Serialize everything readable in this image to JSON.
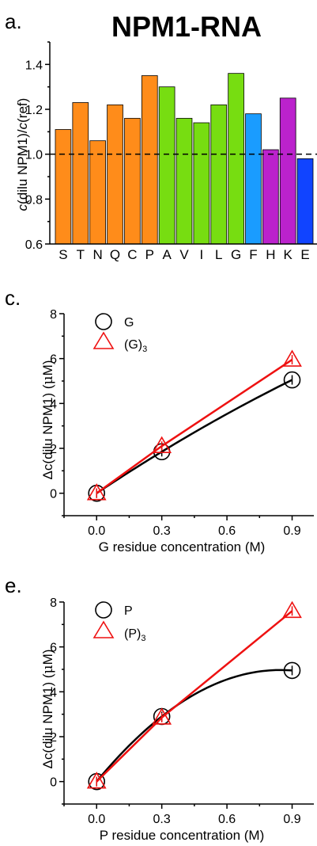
{
  "chart_data": [
    {
      "panel": "a.",
      "title": "NPM1-RNA",
      "type": "bar",
      "ylabel_parts": [
        "c",
        "(dilu NPM1)/",
        "c",
        "(ref)"
      ],
      "ylim": [
        0.6,
        1.5
      ],
      "yticks": [
        0.6,
        0.8,
        1.0,
        1.2,
        1.4
      ],
      "ytick_labels": [
        "0.6",
        "0.8",
        "1.0",
        "1.2",
        "1.4"
      ],
      "reference_line": 1.0,
      "categories": [
        "S",
        "T",
        "N",
        "Q",
        "C",
        "P",
        "A",
        "V",
        "I",
        "L",
        "G",
        "F",
        "H",
        "K",
        "E"
      ],
      "values": [
        1.11,
        1.23,
        1.06,
        1.22,
        1.16,
        1.35,
        1.3,
        1.16,
        1.14,
        1.22,
        1.36,
        1.18,
        1.02,
        1.25,
        0.98
      ],
      "colors": [
        "#ff8c1a",
        "#ff8c1a",
        "#ff8c1a",
        "#ff8c1a",
        "#ff8c1a",
        "#ff8c1a",
        "#77dd11",
        "#77dd11",
        "#77dd11",
        "#77dd11",
        "#77dd11",
        "#1a9cff",
        "#bb22cc",
        "#bb22cc",
        "#1144ff"
      ]
    },
    {
      "panel": "c.",
      "type": "line",
      "xlabel": "G residue concentration (M)",
      "ylabel_parts": [
        "Δc(dilu NPM1) (",
        "μ",
        "M)"
      ],
      "xlim": [
        -0.15,
        1.0
      ],
      "ylim": [
        -1,
        8
      ],
      "xticks": [
        0.0,
        0.3,
        0.6,
        0.9
      ],
      "xtick_labels": [
        "0.0",
        "0.3",
        "0.6",
        "0.9"
      ],
      "yticks": [
        0,
        2,
        4,
        6,
        8
      ],
      "ytick_labels": [
        "0",
        "2",
        "4",
        "6",
        "8"
      ],
      "series": [
        {
          "name": "G",
          "marker": "circle",
          "color": "#000000",
          "x": [
            0.0,
            0.3,
            0.9
          ],
          "y": [
            0.0,
            1.85,
            5.05
          ],
          "fit": "curve"
        },
        {
          "name": "(G)",
          "name_sub": "3",
          "marker": "triangle",
          "color": "#ee1111",
          "x": [
            0.0,
            0.3,
            0.9
          ],
          "y": [
            0.0,
            2.1,
            5.95
          ],
          "fit": "line"
        }
      ]
    },
    {
      "panel": "e.",
      "type": "line",
      "xlabel": "P residue concentration (M)",
      "ylabel_parts": [
        "Δc(dilu NPM1) (",
        "μ",
        "M)"
      ],
      "xlim": [
        -0.15,
        1.0
      ],
      "ylim": [
        -1,
        8
      ],
      "xticks": [
        0.0,
        0.3,
        0.6,
        0.9
      ],
      "xtick_labels": [
        "0.0",
        "0.3",
        "0.6",
        "0.9"
      ],
      "yticks": [
        0,
        2,
        4,
        6,
        8
      ],
      "ytick_labels": [
        "0",
        "2",
        "4",
        "6",
        "8"
      ],
      "series": [
        {
          "name": "P",
          "marker": "circle",
          "color": "#000000",
          "x": [
            0.0,
            0.3,
            0.9
          ],
          "y": [
            0.0,
            2.9,
            4.95
          ],
          "fit": "curve"
        },
        {
          "name": "(P)",
          "name_sub": "3",
          "marker": "triangle",
          "color": "#ee1111",
          "x": [
            0.0,
            0.3,
            0.9
          ],
          "y": [
            0.0,
            2.85,
            7.6
          ],
          "fit": "line"
        }
      ]
    }
  ]
}
